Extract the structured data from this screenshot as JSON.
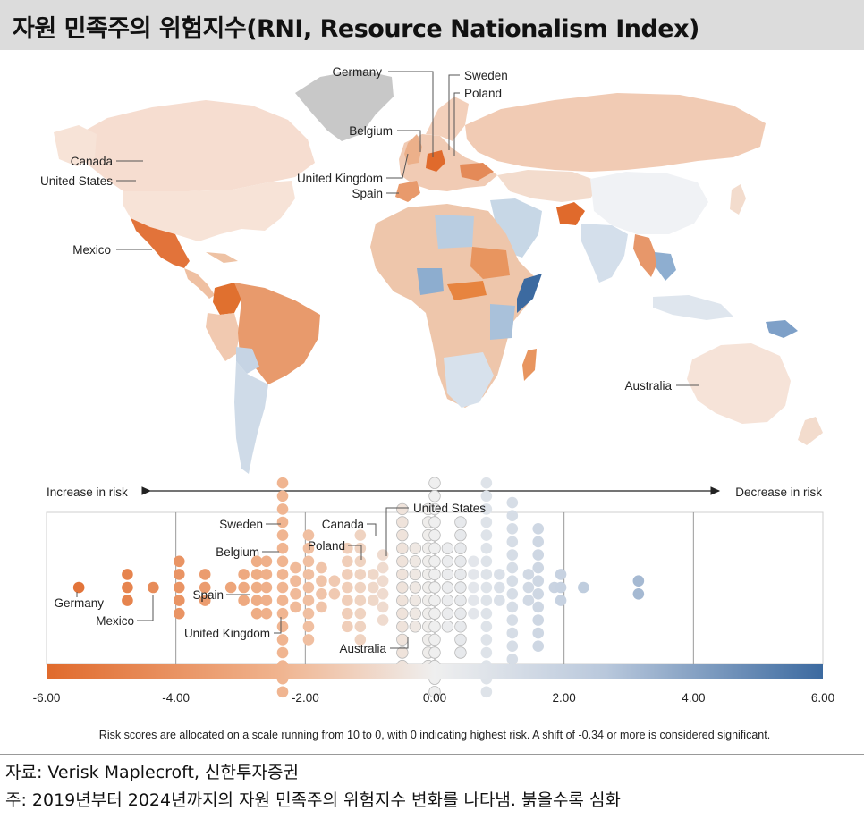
{
  "title": "자원 민족주의 위험지수(RNI, Resource Nationalism Index)",
  "map_labels": [
    {
      "name": "Germany"
    },
    {
      "name": "Sweden"
    },
    {
      "name": "Poland"
    },
    {
      "name": "Belgium"
    },
    {
      "name": "Canada"
    },
    {
      "name": "United States"
    },
    {
      "name": "United Kingdom"
    },
    {
      "name": "Spain"
    },
    {
      "name": "Mexico"
    },
    {
      "name": "Australia"
    }
  ],
  "direction_labels": {
    "left": "Increase in risk",
    "right": "Decrease in risk"
  },
  "colors": {
    "high": "#e06a2c",
    "mid": "#eeeeee",
    "low": "#3c6aa0",
    "no_data": "#c8c8c8"
  },
  "chart_data": {
    "type": "scatter",
    "subtype": "beeswarm",
    "xlabel": "",
    "ylabel": "",
    "xlim": [
      -6,
      6
    ],
    "x_ticks": [
      "-6.00",
      "-4.00",
      "-2.00",
      "0.00",
      "2.00",
      "4.00",
      "6.00"
    ],
    "columns": [
      {
        "x": -5.5,
        "count": 1
      },
      {
        "x": -4.75,
        "count": 3
      },
      {
        "x": -4.35,
        "count": 1
      },
      {
        "x": -3.95,
        "count": 5
      },
      {
        "x": -3.55,
        "count": 3
      },
      {
        "x": -3.15,
        "count": 1
      },
      {
        "x": -2.95,
        "count": 3
      },
      {
        "x": -2.75,
        "count": 5
      },
      {
        "x": -2.6,
        "count": 5
      },
      {
        "x": -2.35,
        "count": 17
      },
      {
        "x": -2.15,
        "count": 4
      },
      {
        "x": -1.95,
        "count": 9
      },
      {
        "x": -1.75,
        "count": 4
      },
      {
        "x": -1.55,
        "count": 2
      },
      {
        "x": -1.35,
        "count": 7
      },
      {
        "x": -1.15,
        "count": 9
      },
      {
        "x": -0.95,
        "count": 3
      },
      {
        "x": -0.8,
        "count": 6
      },
      {
        "x": -0.5,
        "count": 13
      },
      {
        "x": -0.3,
        "count": 7
      },
      {
        "x": -0.1,
        "count": 13
      },
      {
        "x": 0.0,
        "count": 17
      },
      {
        "x": 0.2,
        "count": 7
      },
      {
        "x": 0.4,
        "count": 11
      },
      {
        "x": 0.6,
        "count": 5
      },
      {
        "x": 0.8,
        "count": 17
      },
      {
        "x": 1.0,
        "count": 3
      },
      {
        "x": 1.2,
        "count": 14
      },
      {
        "x": 1.45,
        "count": 3
      },
      {
        "x": 1.6,
        "count": 10
      },
      {
        "x": 1.85,
        "count": 1
      },
      {
        "x": 1.95,
        "count": 3
      },
      {
        "x": 2.3,
        "count": 1
      },
      {
        "x": 3.15,
        "count": 2
      }
    ],
    "annotations": [
      {
        "label": "United States",
        "x": 0.0
      },
      {
        "label": "Canada",
        "x": -0.8
      },
      {
        "label": "Poland",
        "x": -1.15
      },
      {
        "label": "Sweden",
        "x": -2.35
      },
      {
        "label": "Belgium",
        "x": -2.35
      },
      {
        "label": "Spain",
        "x": -2.6
      },
      {
        "label": "United Kingdom",
        "x": -2.35
      },
      {
        "label": "Germany",
        "x": -5.5
      },
      {
        "label": "Mexico",
        "x": -4.35
      },
      {
        "label": "Australia",
        "x": -0.3
      }
    ],
    "note": "Risk scores are allocated on a scale running from 10 to 0, with 0 indicating highest risk. A shift of -0.34 or more is considered significant."
  },
  "source": "자료: Verisk Maplecroft, 신한투자증권",
  "footnote": "주: 2019년부터 2024년까지의 자원 민족주의 위험지수 변화를 나타냄. 붉을수록 심화"
}
